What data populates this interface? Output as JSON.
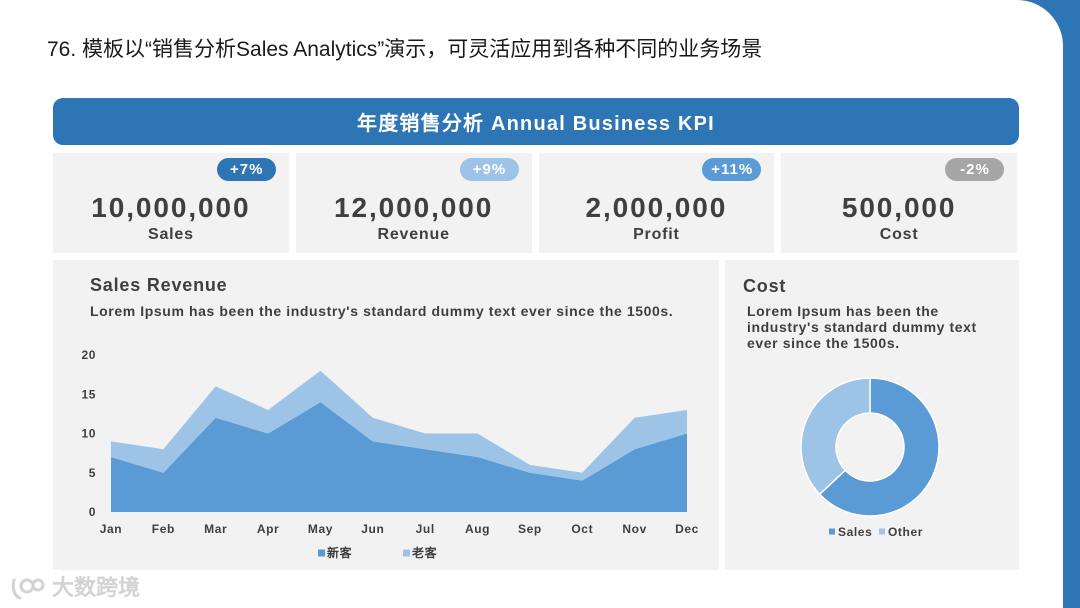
{
  "slide_title": "76. 模板以“销售分析Sales Analytics”演示，可灵活应用到各种不同的业务场景",
  "banner": {
    "title": "年度销售分析 Annual Business KPI"
  },
  "colors": {
    "accent": "#2e75b6",
    "panel_bg": "#f2f2f2",
    "text": "#3f3f3f",
    "watermark": "#d3d3d3"
  },
  "kpis": [
    {
      "badge": "+7%",
      "badge_color": "#2e75b6",
      "value": "10,000,000",
      "label": "Sales"
    },
    {
      "badge": "+9%",
      "badge_color": "#9dc3e6",
      "value": "12,000,000",
      "label": "Revenue"
    },
    {
      "badge": "+11%",
      "badge_color": "#5b9bd5",
      "value": "2,000,000",
      "label": "Profit"
    },
    {
      "badge": "-2%",
      "badge_color": "#a6a6a6",
      "value": "500,000",
      "label": "Cost"
    }
  ],
  "chart_data": [
    {
      "type": "area",
      "stacked": true,
      "title": "Sales Revenue",
      "description": "Lorem Ipsum has been the industry's standard dummy text ever since the 1500s.",
      "categories": [
        "Jan",
        "Feb",
        "Mar",
        "Apr",
        "May",
        "Jun",
        "Jul",
        "Aug",
        "Sep",
        "Oct",
        "Nov",
        "Dec"
      ],
      "series": [
        {
          "name": "新客",
          "values": [
            7,
            5,
            12,
            10,
            14,
            9,
            8,
            7,
            5,
            4,
            8,
            10
          ],
          "color": "#5b9bd5"
        },
        {
          "name": "老客",
          "values": [
            2,
            3,
            4,
            3,
            4,
            3,
            2,
            3,
            1,
            1,
            4,
            3
          ],
          "color": "#9dc3e6"
        }
      ],
      "ylim": [
        0,
        20
      ],
      "yticks": [
        0,
        5,
        10,
        15,
        20
      ],
      "grid": false,
      "legend": "bottom"
    },
    {
      "type": "pie",
      "donut": true,
      "title": "Cost",
      "description": "Lorem Ipsum has been the industry's standard dummy text ever since the 1500s.",
      "categories": [
        "Sales",
        "Other"
      ],
      "values": [
        63,
        37
      ],
      "colors": [
        "#5b9bd5",
        "#9dc3e6"
      ],
      "legend": "bottom"
    }
  ],
  "watermark": {
    "text": "大数跨境",
    "icon": "watermark-logo-icon"
  }
}
